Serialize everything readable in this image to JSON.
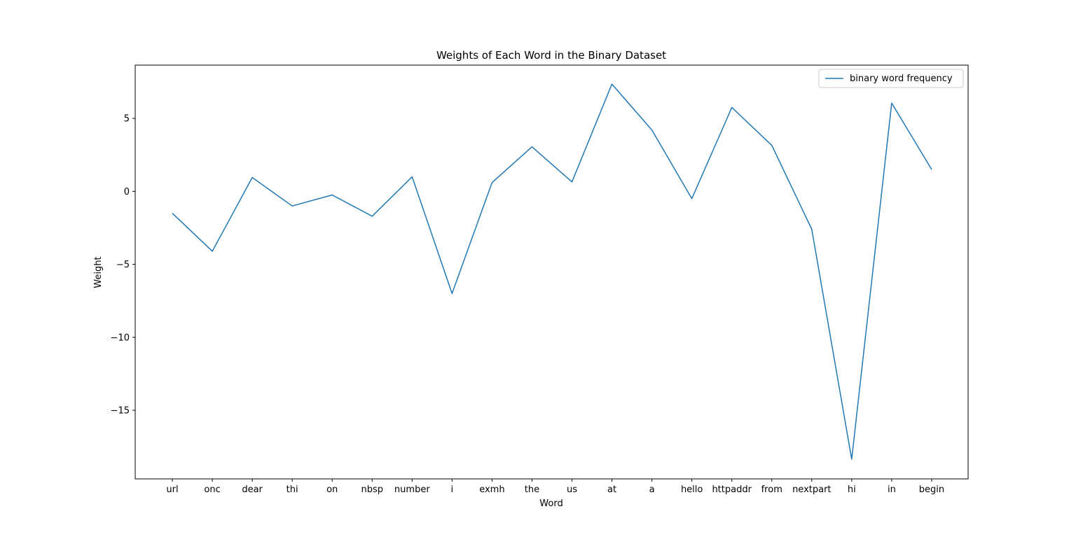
{
  "chart_data": {
    "type": "line",
    "title": "Weights of Each Word in the Binary Dataset",
    "xlabel": "Word",
    "ylabel": "Weight",
    "categories": [
      "url",
      "onc",
      "dear",
      "thi",
      "on",
      "nbsp",
      "number",
      "i",
      "exmh",
      "the",
      "us",
      "at",
      "a",
      "hello",
      "httpaddr",
      "from",
      "nextpart",
      "hi",
      "in",
      "begin"
    ],
    "series": [
      {
        "name": "binary word frequency",
        "color": "#1f77b4",
        "values": [
          -1.5,
          -4.1,
          0.95,
          -1.0,
          -0.25,
          -1.7,
          1.0,
          -7.0,
          0.6,
          3.05,
          0.65,
          7.35,
          4.2,
          -0.5,
          5.75,
          3.15,
          -2.6,
          -18.35,
          6.05,
          1.5
        ]
      }
    ],
    "ylim": [
      -19.7,
      8.65
    ],
    "yticks": [
      5,
      0,
      -5,
      -10,
      -15
    ],
    "ytick_labels": [
      "5",
      "0",
      "−5",
      "−10",
      "−15"
    ],
    "grid": false,
    "legend_position": "top-right"
  }
}
